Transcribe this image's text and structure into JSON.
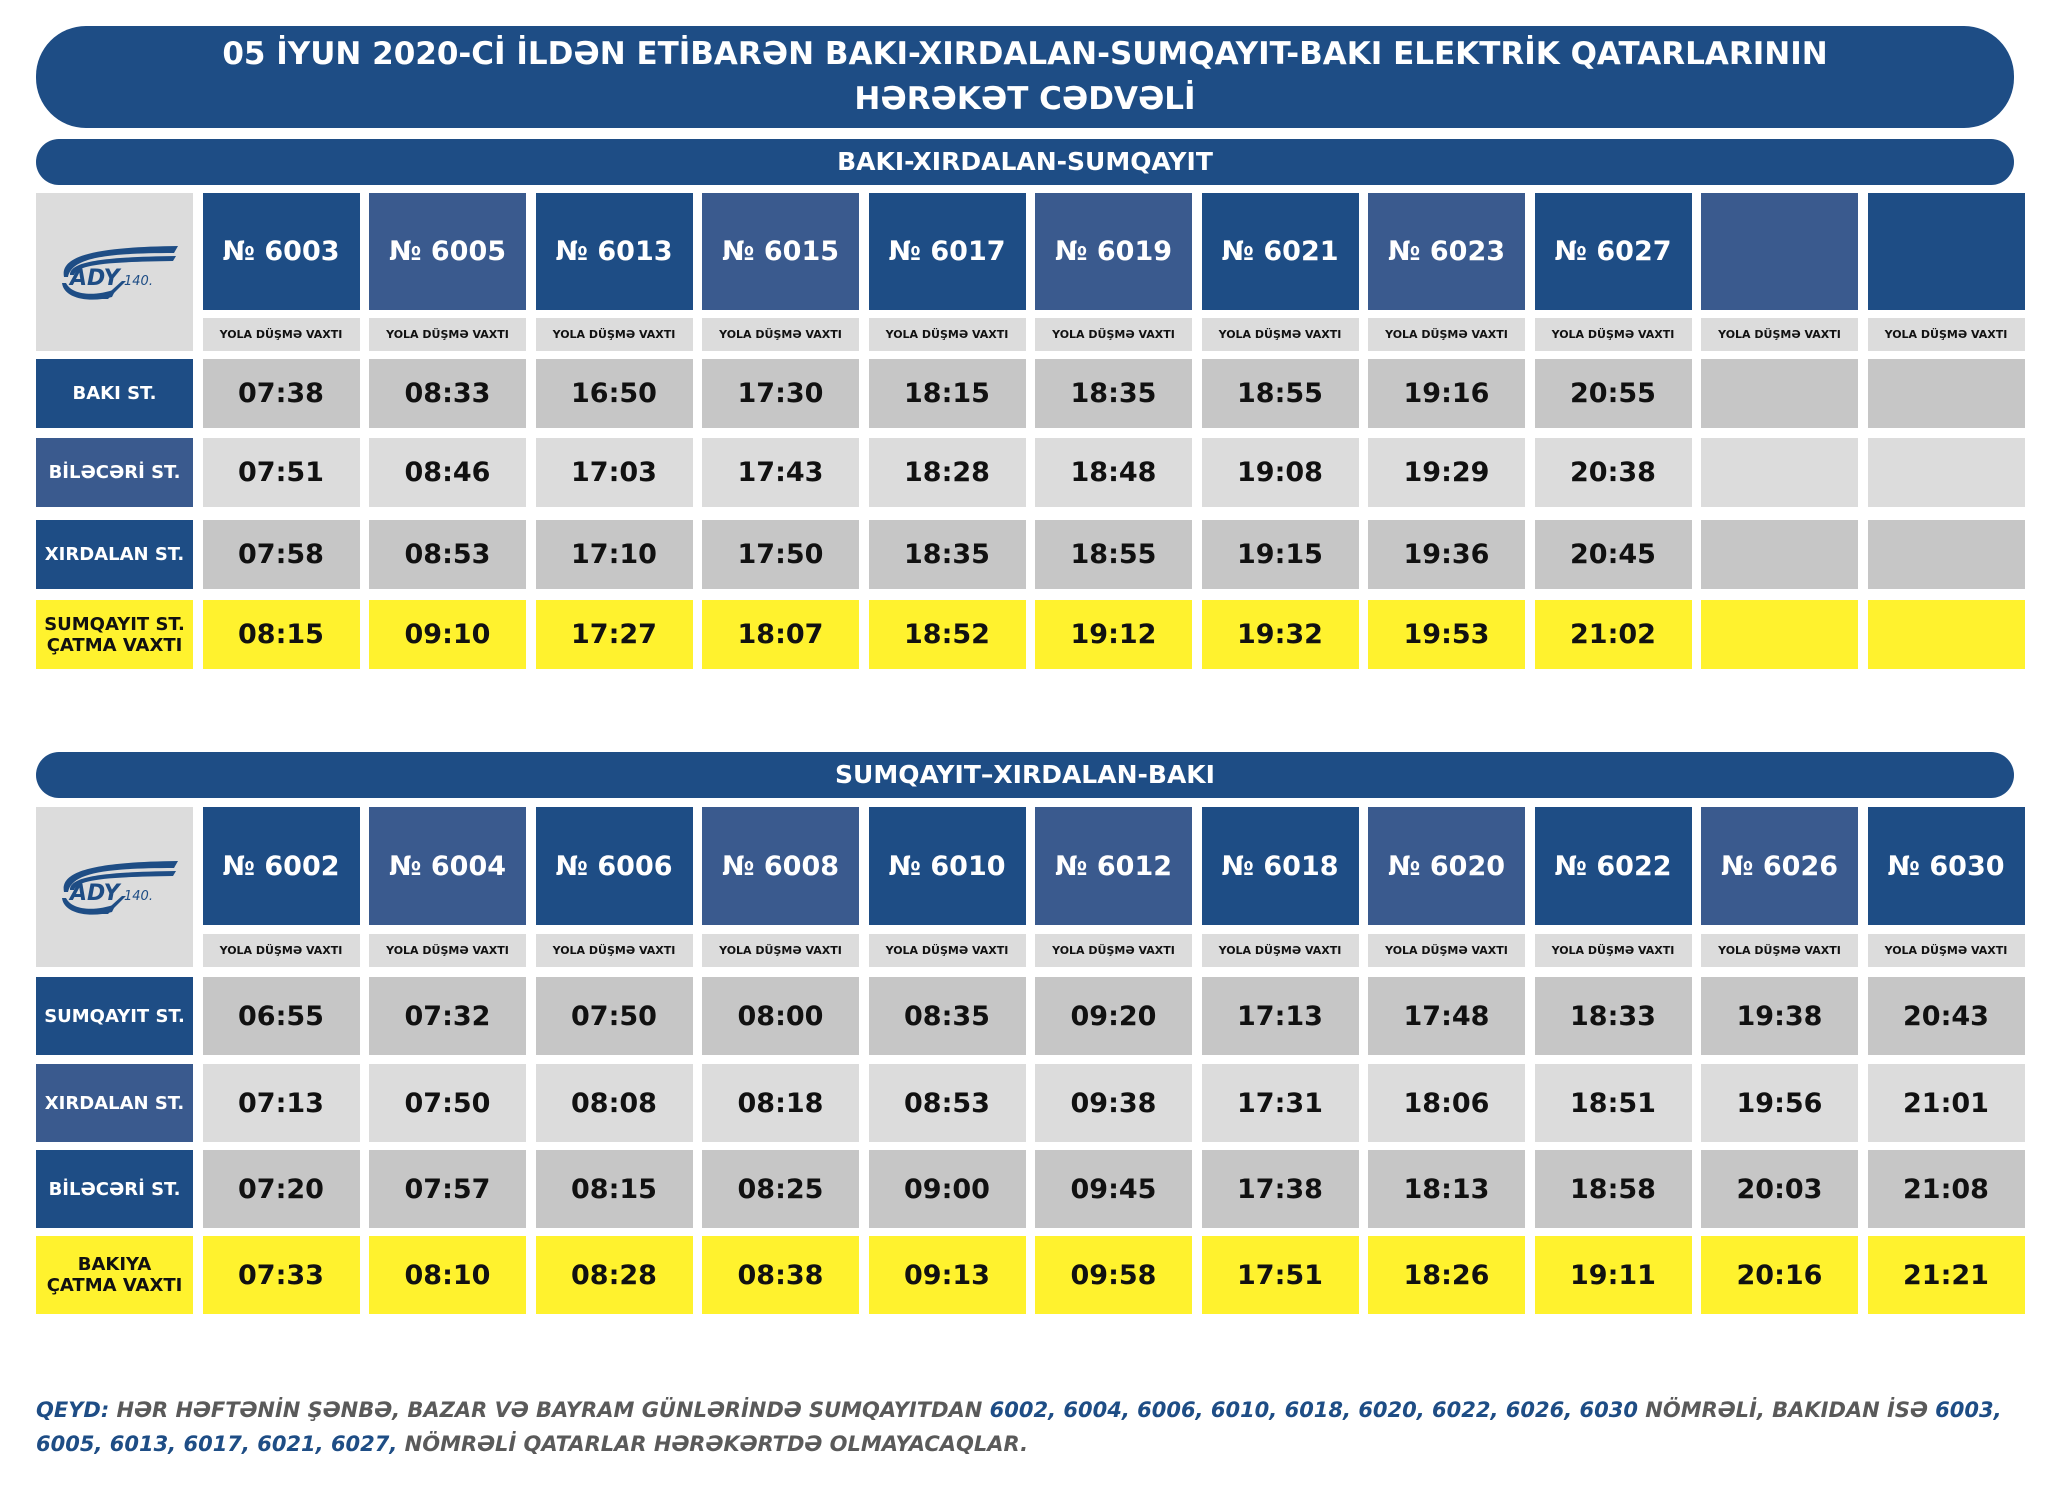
{
  "title": {
    "line1": "05 İYUN 2020-Cİ İLDƏN ETİBARƏN BAKI-XIRDALAN-SUMQAYIT-BAKI ELEKTRİK QATARLARININ",
    "line2": "HƏRƏKƏT CƏDVƏLİ"
  },
  "logo": {
    "icon": "ady-140-logo",
    "text": "ADY",
    "sub": "140"
  },
  "colors": {
    "dark_blue": "#1e4d85",
    "mid_blue": "#3a5a8e",
    "yellow": "#fff22e",
    "gray_dark": "#c6c6c6",
    "gray_light": "#dcdcdc"
  },
  "sections": [
    {
      "title": "BAKI-XIRDALAN-SUMQAYIT",
      "departure_label": "YOLA DÜŞMƏ VAXTI",
      "trains": [
        "№ 6003",
        "№ 6005",
        "№ 6013",
        "№ 6015",
        "№ 6017",
        "№ 6019",
        "№ 6021",
        "№ 6023",
        "№ 6027",
        "",
        ""
      ],
      "stations": [
        {
          "name": "BAKI ST.",
          "times": [
            "07:38",
            "08:33",
            "16:50",
            "17:30",
            "18:15",
            "18:35",
            "18:55",
            "19:16",
            "20:55",
            "",
            ""
          ]
        },
        {
          "name": "BİLƏCƏRİ ST.",
          "times": [
            "07:51",
            "08:46",
            "17:03",
            "17:43",
            "18:28",
            "18:48",
            "19:08",
            "19:29",
            "20:38",
            "",
            ""
          ]
        },
        {
          "name": "XIRDALAN ST.",
          "times": [
            "07:58",
            "08:53",
            "17:10",
            "17:50",
            "18:35",
            "18:55",
            "19:15",
            "19:36",
            "20:45",
            "",
            ""
          ]
        },
        {
          "name": "SUMQAYIT ST. ÇATMA VAXTI",
          "name_l1": "SUMQAYIT ST.",
          "name_l2": "ÇATMA VAXTI",
          "times": [
            "08:15",
            "09:10",
            "17:27",
            "18:07",
            "18:52",
            "19:12",
            "19:32",
            "19:53",
            "21:02",
            "",
            ""
          ]
        }
      ]
    },
    {
      "title": "SUMQAYIT–XIRDALAN-BAKI",
      "departure_label": "YOLA DÜŞMƏ VAXTI",
      "trains": [
        "№ 6002",
        "№ 6004",
        "№ 6006",
        "№ 6008",
        "№ 6010",
        "№ 6012",
        "№ 6018",
        "№ 6020",
        "№ 6022",
        "№ 6026",
        "№ 6030"
      ],
      "stations": [
        {
          "name": "SUMQAYIT ST.",
          "times": [
            "06:55",
            "07:32",
            "07:50",
            "08:00",
            "08:35",
            "09:20",
            "17:13",
            "17:48",
            "18:33",
            "19:38",
            "20:43"
          ]
        },
        {
          "name": "XIRDALAN ST.",
          "times": [
            "07:13",
            "07:50",
            "08:08",
            "08:18",
            "08:53",
            "09:38",
            "17:31",
            "18:06",
            "18:51",
            "19:56",
            "21:01"
          ]
        },
        {
          "name": "BİLƏCƏRİ ST.",
          "times": [
            "07:20",
            "07:57",
            "08:15",
            "08:25",
            "09:00",
            "09:45",
            "17:38",
            "18:13",
            "18:58",
            "20:03",
            "21:08"
          ]
        },
        {
          "name": "BAKIYA ÇATMA VAXTI",
          "name_l1": "BAKIYA",
          "name_l2": "ÇATMA VAXTI",
          "times": [
            "07:33",
            "08:10",
            "08:28",
            "08:38",
            "09:13",
            "09:58",
            "17:51",
            "18:26",
            "19:11",
            "20:16",
            "21:21"
          ]
        }
      ]
    }
  ],
  "note": {
    "label": "QEYD:",
    "text1": " HƏR HƏFTƏNİN ŞƏNBƏ,  BAZAR VƏ BAYRAM GÜNLƏRİNDƏ  SUMQAYITDAN ",
    "trains_from_sumqayit": "6002,  6004, 6006, 6010, 6018, 6020, 6022, 6026, 6030",
    "text2": "  NÖMRƏLİ,  BAKIDAN İSƏ  ",
    "trains_from_baku": "6003, 6005,  6013, 6017, 6021, 6027,",
    "text3": " NÖMRƏLİ  QATARLAR HƏRƏKƏRTDƏ OLMAYACAQLAR."
  }
}
